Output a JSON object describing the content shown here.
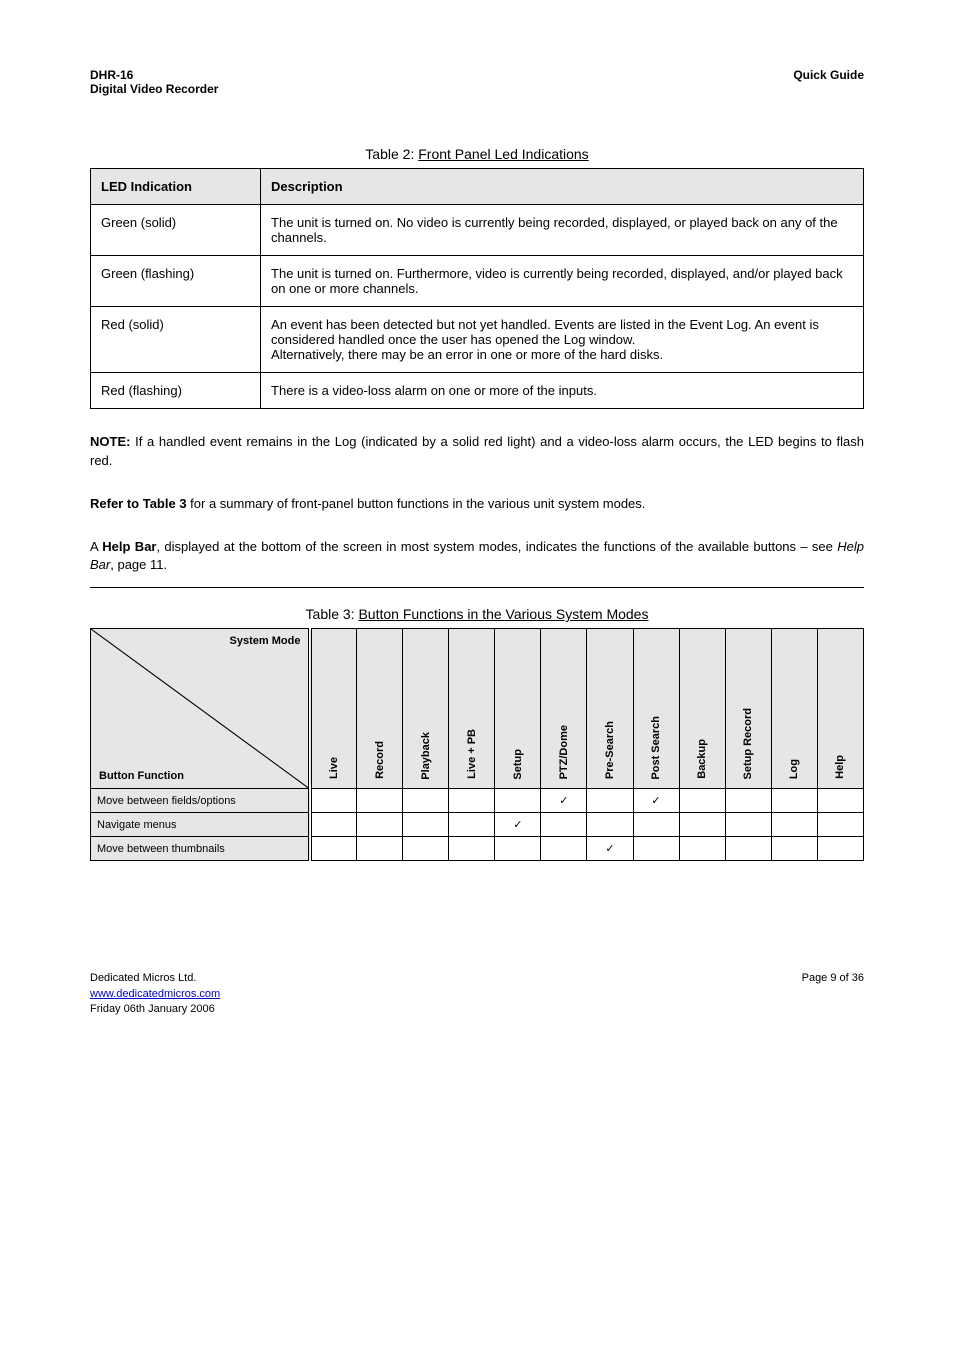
{
  "header": {
    "left_line1": "DHR-16",
    "left_line2": "Digital Video Recorder",
    "right": "Quick Guide"
  },
  "table2_caption_prefix": "Table 2:",
  "table2_caption_title": "Front Panel Led Indications",
  "tbl1": {
    "columns": [
      "LED Indication",
      "Description"
    ],
    "rows": [
      [
        "Green (solid)",
        "The unit is turned on. No video is currently being recorded, displayed, or played back on any of the channels."
      ],
      [
        "Green (flashing)",
        "The unit is turned on. Furthermore, video is currently being recorded, displayed, and/or played back on one or more channels."
      ],
      [
        "Red (solid)",
        "An event has been detected but not yet handled. Events are listed in the Event Log. An event is considered handled once the user has opened the Log window.\nAlternatively, there may be an error in one or more of the hard disks."
      ],
      [
        "Red (flashing)",
        "There is a video-loss alarm on one or more of the inputs."
      ]
    ]
  },
  "notes": {
    "p1_bold": "NOTE:",
    "p1_text": " If a handled event remains in the Log (indicated by a solid red light) and a video-loss alarm occurs, the LED begins to flash red.",
    "p2_bold": "Refer to Table 3",
    "p2_text": " for a summary of front-panel button functions in the various unit system modes.",
    "p3_part1": "A ",
    "p3_bold": "Help Bar",
    "p3_part2": ", displayed at the bottom of the screen in most system modes, indicates the functions of the available buttons – see ",
    "p3_italic": "Help Bar",
    "p3_part3": ", page 11."
  },
  "table3_caption_prefix": "Table 3:",
  "table3_caption_title": "Button Functions in the Various System Modes",
  "tbl2": {
    "diag_top": "System Mode",
    "diag_bottom": "Button Function",
    "columns": [
      "Live",
      "Record",
      "Playback",
      "Live + PB",
      "Setup",
      "PTZ/Dome",
      "Pre-Search",
      "Post Search",
      "Backup",
      "Setup Record",
      "Log",
      "Help"
    ],
    "rows": [
      {
        "label": "Move between fields/options",
        "marks": [
          0,
          0,
          0,
          0,
          0,
          1,
          0,
          1,
          0,
          0,
          0,
          0
        ]
      },
      {
        "label": "Navigate menus",
        "marks": [
          0,
          0,
          0,
          0,
          1,
          0,
          0,
          0,
          0,
          0,
          0,
          0
        ]
      },
      {
        "label": "Move between thumbnails",
        "marks": [
          0,
          0,
          0,
          0,
          0,
          0,
          1,
          0,
          0,
          0,
          0,
          0
        ]
      }
    ]
  },
  "footer": {
    "company": "Dedicated Micros Ltd.",
    "page": "Page 9 of 36",
    "url_label": "www.dedicatedmicros.com",
    "url": "http://www.dedicatedmicros.com/",
    "date": "Friday 06th January 2006"
  },
  "colors": {
    "header_bg": "#e6e6e6",
    "border": "#000000",
    "link": "#0000cc"
  }
}
